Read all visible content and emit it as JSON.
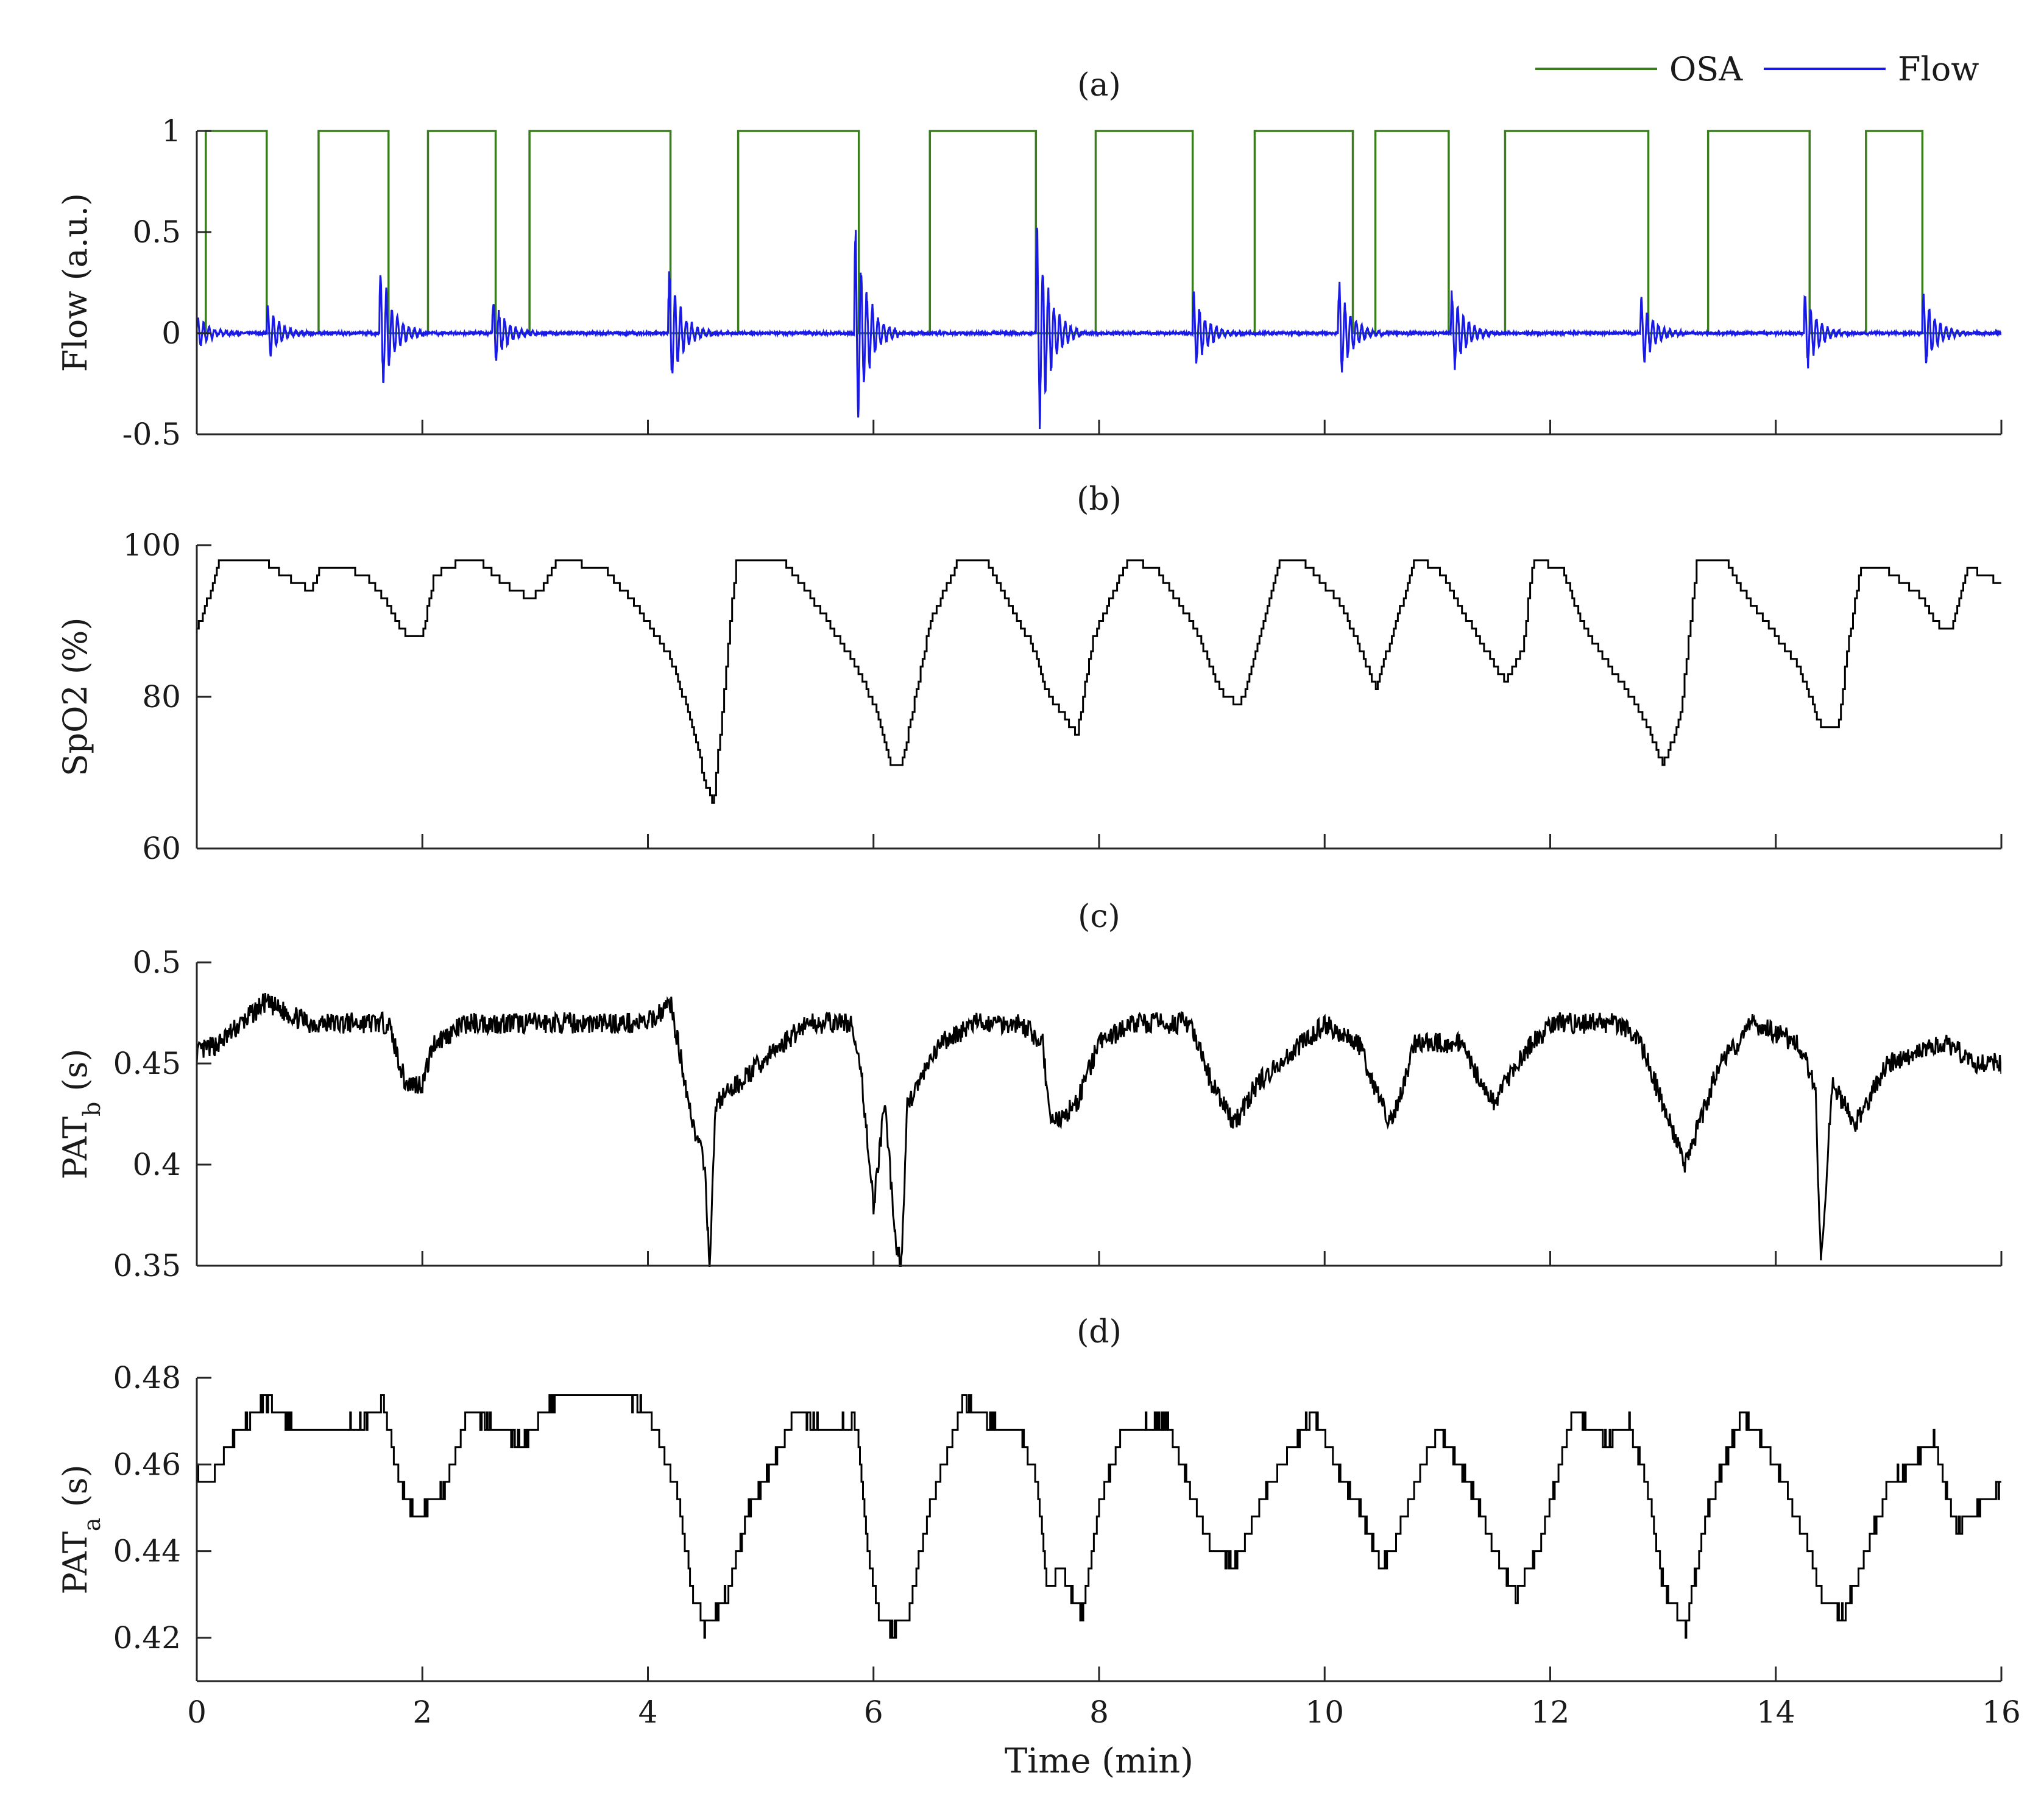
{
  "chart_data": [
    {
      "id": "a",
      "type": "line",
      "title": "(a)",
      "ylabel": "Flow (a.u.)",
      "ylabel_sub": "",
      "ylabel_suffix": "",
      "xlabel": "",
      "xlim": [
        0,
        16
      ],
      "ylim": [
        -0.5,
        1
      ],
      "xticks": [
        0,
        2,
        4,
        6,
        8,
        10,
        12,
        14,
        16
      ],
      "yticks": [
        -0.5,
        0,
        0.5,
        1
      ],
      "ytick_labels": [
        "-0.5",
        "0",
        "0.5",
        "1"
      ],
      "show_x_tick_labels": false,
      "legend": {
        "placement": "top-right",
        "entries": [
          {
            "label": "OSA",
            "color": "#3a7d1e"
          },
          {
            "label": "Flow",
            "color": "#1a1ae6"
          }
        ]
      },
      "osa_intervals": [
        [
          0.08,
          0.62
        ],
        [
          1.08,
          1.7
        ],
        [
          2.05,
          2.65
        ],
        [
          2.95,
          4.2
        ],
        [
          4.8,
          5.87
        ],
        [
          6.5,
          7.44
        ],
        [
          7.97,
          8.83
        ],
        [
          9.38,
          10.25
        ],
        [
          10.45,
          11.1
        ],
        [
          11.6,
          12.87
        ],
        [
          13.4,
          14.3
        ],
        [
          14.8,
          15.3
        ]
      ],
      "flow_bursts": [
        {
          "start": 0.0,
          "amp": 0.08
        },
        {
          "start": 0.62,
          "amp": 0.13
        },
        {
          "start": 1.62,
          "amp": 0.33
        },
        {
          "start": 2.62,
          "amp": 0.17
        },
        {
          "start": 4.18,
          "amp": 0.3
        },
        {
          "start": 5.83,
          "amp": 0.52
        },
        {
          "start": 7.44,
          "amp": 0.55
        },
        {
          "start": 8.83,
          "amp": 0.2
        },
        {
          "start": 10.12,
          "amp": 0.25
        },
        {
          "start": 11.12,
          "amp": 0.22
        },
        {
          "start": 12.8,
          "amp": 0.18
        },
        {
          "start": 14.25,
          "amp": 0.2
        },
        {
          "start": 15.3,
          "amp": 0.2
        }
      ],
      "series": [
        {
          "name": "OSA",
          "color": "#3a7d1e"
        },
        {
          "name": "Flow",
          "color": "#1a1ae6"
        }
      ]
    },
    {
      "id": "b",
      "type": "line",
      "title": "(b)",
      "ylabel": "SpO2 (%)",
      "ylabel_sub": "",
      "ylabel_suffix": "",
      "xlabel": "",
      "xlim": [
        0,
        16
      ],
      "ylim": [
        60,
        100
      ],
      "xticks": [
        0,
        2,
        4,
        6,
        8,
        10,
        12,
        14,
        16
      ],
      "yticks": [
        60,
        80,
        100
      ],
      "ytick_labels": [
        "60",
        "80",
        "100"
      ],
      "show_x_tick_labels": false,
      "x": [
        0,
        0.1,
        0.2,
        0.6,
        0.75,
        0.9,
        1.0,
        1.1,
        1.3,
        1.5,
        1.7,
        1.85,
        2.0,
        2.1,
        2.35,
        2.5,
        2.7,
        2.95,
        3.05,
        3.2,
        3.6,
        3.9,
        4.2,
        4.4,
        4.5,
        4.58,
        4.7,
        4.78,
        5.2,
        5.5,
        5.85,
        6.0,
        6.15,
        6.25,
        6.5,
        6.75,
        7.0,
        7.2,
        7.4,
        7.55,
        7.62,
        7.8,
        7.95,
        8.25,
        8.5,
        8.85,
        9.1,
        9.25,
        9.35,
        9.6,
        9.8,
        10.15,
        10.35,
        10.45,
        10.55,
        10.8,
        11.0,
        11.35,
        11.6,
        11.75,
        11.85,
        12.1,
        12.3,
        12.8,
        13.0,
        13.15,
        13.3,
        13.55,
        13.7,
        14.2,
        14.4,
        14.55,
        14.65,
        14.75,
        14.95,
        15.3,
        15.45,
        15.55,
        15.7,
        16.0
      ],
      "values": [
        89,
        93,
        98,
        98,
        96,
        95,
        94,
        97,
        97,
        96,
        92,
        88,
        88,
        96,
        98,
        98,
        95,
        93,
        94,
        98,
        97,
        92,
        85,
        76,
        69,
        66,
        85,
        98,
        98,
        92,
        84,
        79,
        71,
        71,
        90,
        98,
        98,
        92,
        87,
        80,
        79,
        75,
        88,
        98,
        97,
        89,
        80,
        79,
        84,
        98,
        98,
        92,
        85,
        81,
        86,
        98,
        97,
        88,
        82,
        86,
        98,
        97,
        89,
        78,
        71,
        77,
        98,
        98,
        94,
        84,
        76,
        76,
        88,
        97,
        97,
        93,
        89,
        89,
        97,
        95
      ],
      "series": [
        {
          "name": "",
          "color": "#000000"
        }
      ]
    },
    {
      "id": "c",
      "type": "line",
      "title": "(c)",
      "ylabel": "PAT",
      "ylabel_sub": "b",
      "ylabel_suffix": " (s)",
      "xlabel": "",
      "xlim": [
        0,
        16
      ],
      "ylim": [
        0.35,
        0.5
      ],
      "xticks": [
        0,
        2,
        4,
        6,
        8,
        10,
        12,
        14,
        16
      ],
      "yticks": [
        0.35,
        0.4,
        0.45,
        0.5
      ],
      "ytick_labels": [
        "0.35",
        "0.4",
        "0.45",
        "0.5"
      ],
      "show_x_tick_labels": false,
      "x": [
        0,
        0.2,
        0.6,
        1.0,
        1.5,
        1.7,
        1.85,
        2.0,
        2.1,
        2.4,
        3.0,
        4.0,
        4.2,
        4.3,
        4.4,
        4.5,
        4.55,
        4.6,
        5.0,
        5.4,
        5.8,
        5.9,
        6.0,
        6.1,
        6.2,
        6.25,
        6.3,
        6.6,
        6.9,
        7.3,
        7.5,
        7.55,
        7.6,
        7.8,
        8.0,
        8.3,
        8.8,
        9.0,
        9.2,
        9.4,
        9.6,
        10.0,
        10.3,
        10.5,
        10.6,
        10.8,
        11.2,
        11.4,
        11.5,
        11.7,
        12.0,
        12.6,
        12.8,
        13.0,
        13.2,
        13.5,
        13.8,
        14.2,
        14.35,
        14.4,
        14.5,
        14.7,
        15.0,
        15.5,
        15.8,
        16.0
      ],
      "values": [
        0.455,
        0.46,
        0.48,
        0.47,
        0.47,
        0.47,
        0.44,
        0.44,
        0.46,
        0.47,
        0.47,
        0.47,
        0.48,
        0.45,
        0.42,
        0.4,
        0.35,
        0.43,
        0.45,
        0.47,
        0.47,
        0.44,
        0.38,
        0.43,
        0.36,
        0.35,
        0.43,
        0.46,
        0.47,
        0.47,
        0.46,
        0.43,
        0.42,
        0.43,
        0.46,
        0.47,
        0.47,
        0.44,
        0.42,
        0.44,
        0.45,
        0.47,
        0.46,
        0.43,
        0.42,
        0.46,
        0.46,
        0.44,
        0.43,
        0.45,
        0.47,
        0.47,
        0.46,
        0.43,
        0.4,
        0.45,
        0.47,
        0.46,
        0.44,
        0.35,
        0.44,
        0.42,
        0.45,
        0.46,
        0.45,
        0.45
      ],
      "series": [
        {
          "name": "",
          "color": "#000000"
        }
      ]
    },
    {
      "id": "d",
      "type": "line",
      "title": "(d)",
      "ylabel": "PAT",
      "ylabel_sub": "a",
      "ylabel_suffix": " (s)",
      "xlabel": "Time (min)",
      "xlim": [
        0,
        16
      ],
      "ylim": [
        0.41,
        0.48
      ],
      "xticks": [
        0,
        2,
        4,
        6,
        8,
        10,
        12,
        14,
        16
      ],
      "xtick_labels": [
        "0",
        "2",
        "4",
        "6",
        "8",
        "10",
        "12",
        "14",
        "16"
      ],
      "yticks": [
        0.42,
        0.44,
        0.46,
        0.48
      ],
      "ytick_labels": [
        "0.42",
        "0.44",
        "0.46",
        "0.48"
      ],
      "show_x_tick_labels": true,
      "x": [
        0,
        0.1,
        0.3,
        0.6,
        0.8,
        1.0,
        1.5,
        1.65,
        1.8,
        1.95,
        2.2,
        2.4,
        2.9,
        3.2,
        3.8,
        4.0,
        4.25,
        4.4,
        4.5,
        4.7,
        4.9,
        5.1,
        5.3,
        5.6,
        5.85,
        5.95,
        6.05,
        6.15,
        6.3,
        6.5,
        6.8,
        7.0,
        7.3,
        7.45,
        7.55,
        7.65,
        7.75,
        7.85,
        8.0,
        8.2,
        8.6,
        8.8,
        9.0,
        9.2,
        9.5,
        9.9,
        10.1,
        10.3,
        10.5,
        10.6,
        10.8,
        11.0,
        11.3,
        11.5,
        11.7,
        11.9,
        12.2,
        12.5,
        12.7,
        12.9,
        13.0,
        13.2,
        13.4,
        13.7,
        14.0,
        14.3,
        14.4,
        14.6,
        14.8,
        15.0,
        15.4,
        15.6,
        15.8,
        16.0
      ],
      "values": [
        0.458,
        0.455,
        0.465,
        0.475,
        0.47,
        0.467,
        0.47,
        0.475,
        0.455,
        0.447,
        0.455,
        0.472,
        0.465,
        0.476,
        0.476,
        0.472,
        0.455,
        0.43,
        0.422,
        0.43,
        0.45,
        0.46,
        0.472,
        0.468,
        0.47,
        0.44,
        0.425,
        0.422,
        0.425,
        0.45,
        0.475,
        0.47,
        0.468,
        0.455,
        0.43,
        0.437,
        0.43,
        0.425,
        0.45,
        0.468,
        0.47,
        0.455,
        0.44,
        0.437,
        0.455,
        0.472,
        0.46,
        0.45,
        0.437,
        0.44,
        0.455,
        0.468,
        0.455,
        0.44,
        0.43,
        0.44,
        0.472,
        0.465,
        0.47,
        0.45,
        0.432,
        0.422,
        0.45,
        0.472,
        0.46,
        0.44,
        0.43,
        0.425,
        0.44,
        0.455,
        0.465,
        0.445,
        0.45,
        0.455
      ],
      "series": [
        {
          "name": "",
          "color": "#000000"
        }
      ]
    }
  ]
}
